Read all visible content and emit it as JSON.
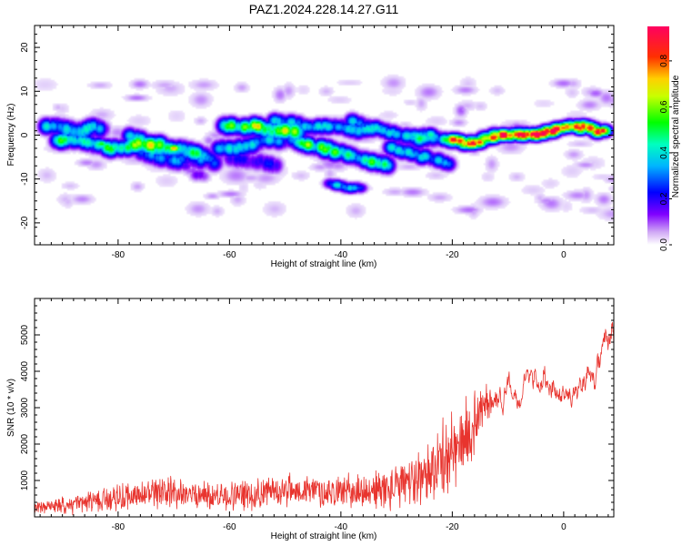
{
  "figure_title": "PAZ1.2024.228.14.27.G11",
  "colors": {
    "snr_line": "#e8342e",
    "axis": "#000000",
    "background": "#ffffff"
  },
  "chart_data": [
    {
      "type": "heatmap",
      "xlabel": "Height of straight line (km)",
      "ylabel": "Frequency (Hz)",
      "xlim": [
        -95,
        9
      ],
      "ylim": [
        -25,
        25
      ],
      "x_ticks": [
        -80,
        -60,
        -40,
        -20,
        0
      ],
      "x_tick_labels": [
        "-80",
        "-60",
        "-40",
        "-20",
        "0"
      ],
      "y_ticks": [
        -20,
        -10,
        0,
        10,
        20
      ],
      "y_tick_labels": [
        "-20",
        "-10",
        "0",
        "10",
        "20"
      ],
      "colorbar": {
        "label": "Normalized spectral amplitude",
        "range": [
          0,
          0.95
        ],
        "ticks": [
          0,
          0.2,
          0.4,
          0.6,
          0.8
        ],
        "tick_labels": [
          "0.0",
          "0.2",
          "0.4",
          "0.6",
          "0.8"
        ],
        "colormap": "rainbow (white-violet-blue-cyan-green-yellow-red-magenta)"
      },
      "ridges": [
        {
          "points": [
            [
              -93,
              2
            ],
            [
              -90,
              2
            ],
            [
              -87,
              1
            ],
            [
              -84,
              2
            ],
            [
              -82,
              1
            ]
          ],
          "amp": 0.3,
          "spread": 1.2
        },
        {
          "points": [
            [
              -91,
              -1
            ],
            [
              -88,
              -1
            ],
            [
              -85,
              -2
            ],
            [
              -82,
              -3
            ],
            [
              -79,
              -3
            ],
            [
              -76,
              -2
            ],
            [
              -72,
              -2
            ]
          ],
          "amp": 0.4,
          "spread": 1.2
        },
        {
          "points": [
            [
              -78,
              0
            ],
            [
              -76,
              -1
            ],
            [
              -74,
              -3
            ],
            [
              -72,
              -3
            ],
            [
              -69,
              -3
            ],
            [
              -66,
              -4
            ],
            [
              -64,
              -5
            ],
            [
              -62,
              -7
            ]
          ],
          "amp": 0.35,
          "spread": 1.2
        },
        {
          "points": [
            [
              -76,
              -4
            ],
            [
              -73,
              -5
            ],
            [
              -70,
              -6
            ],
            [
              -67,
              -5
            ],
            [
              -64,
              -6
            ]
          ],
          "amp": 0.25,
          "spread": 1.3
        },
        {
          "points": [
            [
              -61,
              2
            ],
            [
              -58,
              2
            ],
            [
              -55,
              2
            ],
            [
              -52,
              1
            ],
            [
              -49,
              1
            ],
            [
              -47,
              1
            ]
          ],
          "amp": 0.5,
          "spread": 1.2
        },
        {
          "points": [
            [
              -62,
              -3
            ],
            [
              -59,
              -3
            ],
            [
              -56,
              -2
            ],
            [
              -53,
              -1
            ],
            [
              -50,
              -2
            ]
          ],
          "amp": 0.3,
          "spread": 1.2
        },
        {
          "points": [
            [
              -60,
              -5
            ],
            [
              -57,
              -6
            ],
            [
              -54,
              -6
            ],
            [
              -51,
              -7
            ]
          ],
          "amp": 0.2,
          "spread": 1.3
        },
        {
          "points": [
            [
              -52,
              3
            ],
            [
              -49,
              3
            ],
            [
              -46,
              2
            ],
            [
              -43,
              2
            ],
            [
              -40,
              2
            ],
            [
              -37,
              1
            ],
            [
              -34,
              1
            ]
          ],
          "amp": 0.3,
          "spread": 1.1
        },
        {
          "points": [
            [
              -49,
              -1
            ],
            [
              -46,
              -2
            ],
            [
              -43,
              -3
            ],
            [
              -40,
              -4
            ],
            [
              -37,
              -5
            ],
            [
              -34,
              -6
            ],
            [
              -31,
              -7
            ]
          ],
          "amp": 0.42,
          "spread": 1.2
        },
        {
          "points": [
            [
              -38,
              3
            ],
            [
              -35,
              2
            ],
            [
              -32,
              1
            ],
            [
              -29,
              0
            ],
            [
              -26,
              -1
            ],
            [
              -23,
              -1
            ]
          ],
          "amp": 0.3,
          "spread": 1.1
        },
        {
          "points": [
            [
              -31,
              -3
            ],
            [
              -28,
              -4
            ],
            [
              -25,
              -5
            ],
            [
              -22,
              -6
            ],
            [
              -20,
              -7
            ]
          ],
          "amp": 0.3,
          "spread": 1.1
        },
        {
          "points": [
            [
              -27,
              0
            ],
            [
              -24,
              0
            ],
            [
              -21,
              -1
            ],
            [
              -18,
              -2
            ],
            [
              -15,
              -1
            ],
            [
              -12,
              0
            ]
          ],
          "amp": 0.35,
          "spread": 1.0
        },
        {
          "points": [
            [
              -20,
              -1
            ],
            [
              -17,
              -2
            ],
            [
              -14,
              -1
            ],
            [
              -11,
              0
            ],
            [
              -8,
              0
            ],
            [
              -5,
              0
            ],
            [
              -2,
              1
            ],
            [
              1,
              2
            ],
            [
              4,
              2
            ],
            [
              6,
              1
            ],
            [
              8,
              1
            ]
          ],
          "amp": 0.65,
          "spread": 0.9
        },
        {
          "points": [
            [
              -42,
              -11
            ],
            [
              -39,
              -12
            ],
            [
              -36,
              -12
            ]
          ],
          "amp": 0.3,
          "spread": 0.8
        },
        {
          "points": [
            [
              -68,
              -7
            ],
            [
              -66,
              -9
            ],
            [
              -64,
              -10
            ]
          ],
          "amp": 0.15,
          "spread": 1.0
        }
      ],
      "peaks": [
        {
          "x": -55,
          "y": 2,
          "amp": 0.55
        },
        {
          "x": -50,
          "y": 1,
          "amp": 0.6
        },
        {
          "x": -70,
          "y": -3,
          "amp": 0.75
        },
        {
          "x": -46,
          "y": -2,
          "amp": 0.5
        },
        {
          "x": -11,
          "y": 0,
          "amp": 0.9
        },
        {
          "x": -5,
          "y": 0,
          "amp": 0.95
        },
        {
          "x": -2,
          "y": 1,
          "amp": 0.75
        },
        {
          "x": 7,
          "y": 1,
          "amp": 0.9
        },
        {
          "x": 3,
          "y": 1,
          "amp": 0.6
        },
        {
          "x": -83,
          "y": -2,
          "amp": 0.55
        }
      ]
    },
    {
      "type": "line",
      "xlabel": "Height of straight line (km)",
      "ylabel": "SNR (10 * v/v)",
      "xlim": [
        -95,
        9
      ],
      "ylim": [
        0,
        6000
      ],
      "x_ticks": [
        -80,
        -60,
        -40,
        -20,
        0
      ],
      "x_tick_labels": [
        "-80",
        "-60",
        "-40",
        "-20",
        "0"
      ],
      "y_ticks": [
        1000,
        2000,
        3000,
        4000,
        5000
      ],
      "y_tick_labels": [
        "1000",
        "2000",
        "3000",
        "4000",
        "5000"
      ],
      "series": [
        {
          "x": [
            -95,
            -90,
            -85,
            -80,
            -75,
            -70,
            -65,
            -60,
            -55,
            -50,
            -45,
            -40,
            -35,
            -30,
            -27,
            -24,
            -22,
            -20,
            -18,
            -16,
            -14,
            -12,
            -10,
            -8,
            -6,
            -4,
            -2,
            0,
            2,
            4,
            6,
            8,
            9
          ],
          "center": [
            250,
            300,
            400,
            550,
            600,
            650,
            600,
            550,
            650,
            750,
            700,
            700,
            700,
            800,
            1000,
            1300,
            1500,
            1700,
            2000,
            2600,
            3200,
            3300,
            3400,
            3200,
            3600,
            4000,
            3800,
            3200,
            3600,
            3800,
            4000,
            4500,
            4800
          ],
          "noise": [
            150,
            250,
            300,
            400,
            450,
            450,
            400,
            450,
            450,
            450,
            450,
            450,
            550,
            650,
            750,
            900,
            1100,
            1300,
            1200,
            900,
            600,
            500,
            450,
            400,
            450,
            500,
            500,
            450,
            450,
            500,
            500,
            600,
            900
          ]
        }
      ]
    }
  ]
}
